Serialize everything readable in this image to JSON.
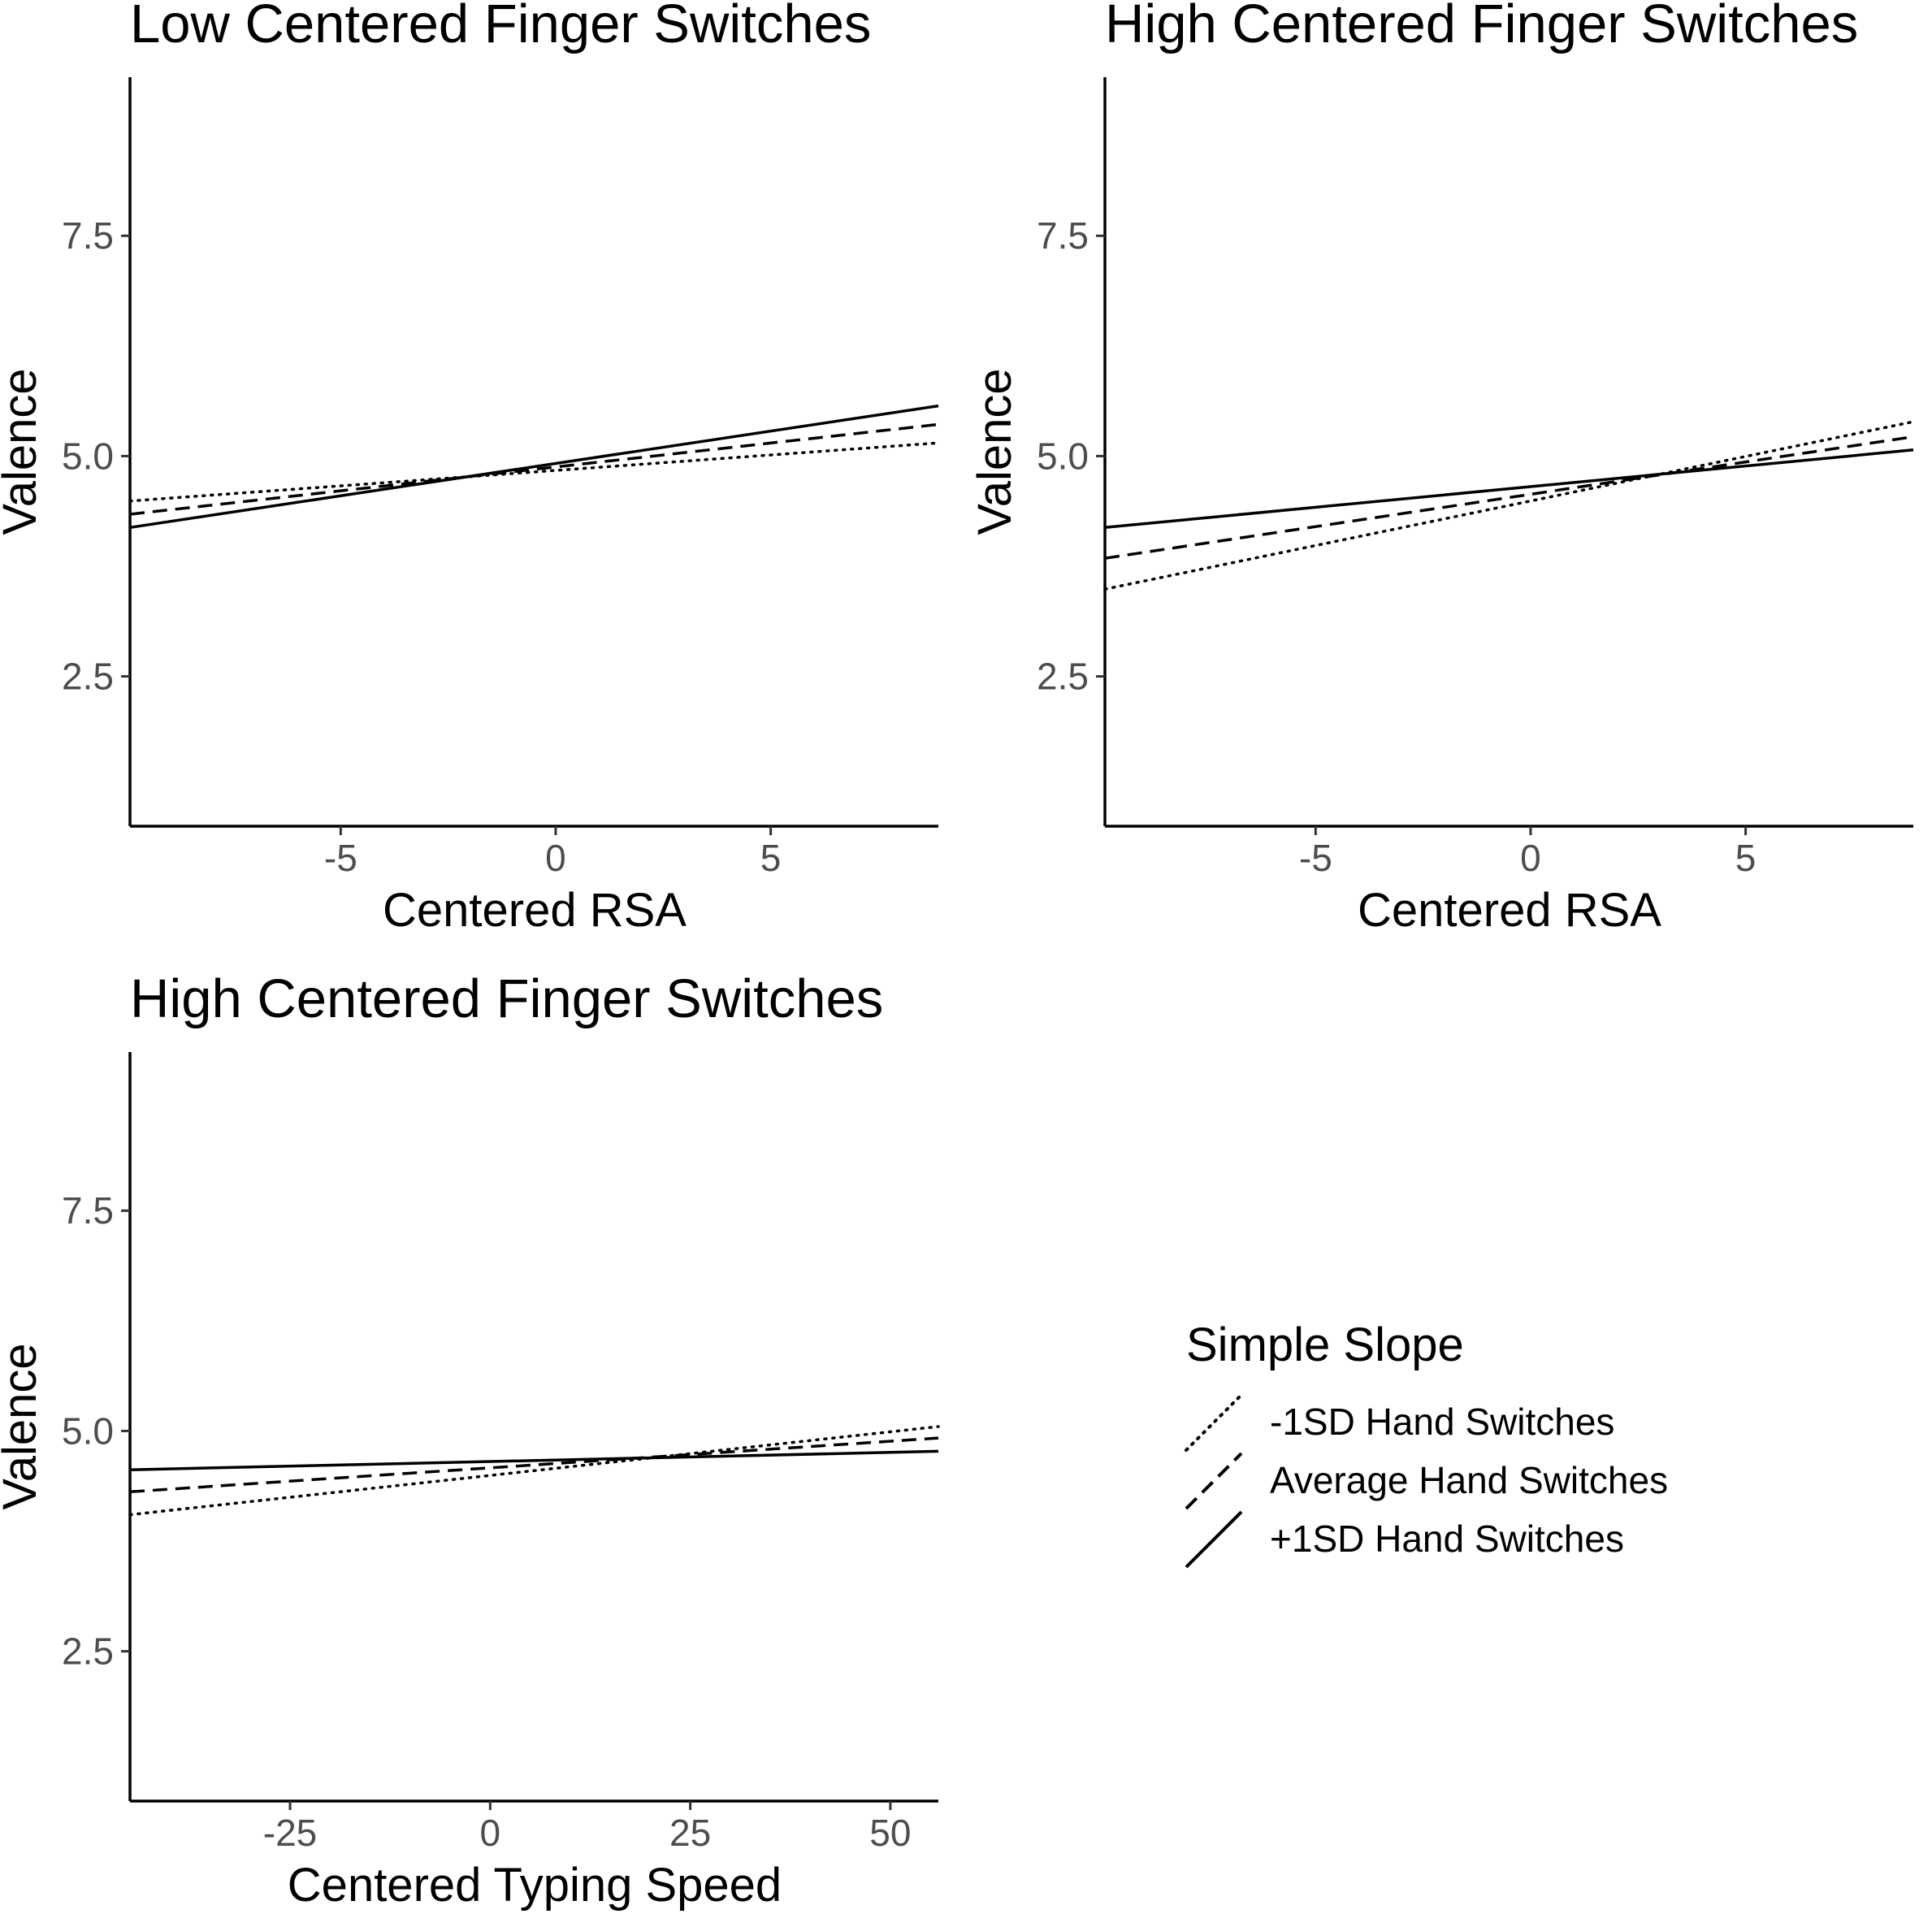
{
  "chart_data": [
    {
      "type": "line",
      "title": "Low Centered Finger Switches",
      "xlabel": "Centered RSA",
      "ylabel": "Valence",
      "xlim": [
        -9.9,
        8.9
      ],
      "ylim": [
        0.8,
        9.3
      ],
      "xticks": [
        -5,
        0,
        5
      ],
      "xtick_labels": [
        "-5",
        "0",
        "5"
      ],
      "yticks": [
        2.5,
        5.0,
        7.5
      ],
      "ytick_labels": [
        "2.5",
        "5.0",
        "7.5"
      ],
      "grid": false,
      "series": [
        {
          "name": "-1SD Hand Switches",
          "style": "dotted",
          "x": [
            -9.9,
            8.9
          ],
          "y": [
            4.49,
            5.15
          ]
        },
        {
          "name": "Average Hand Switches",
          "style": "dashed",
          "x": [
            -9.9,
            8.9
          ],
          "y": [
            4.34,
            5.36
          ]
        },
        {
          "name": "+1SD Hand Switches",
          "style": "solid",
          "x": [
            -9.9,
            8.9
          ],
          "y": [
            4.19,
            5.57
          ]
        }
      ]
    },
    {
      "type": "line",
      "title": "High Centered Finger Switches",
      "xlabel": "Centered RSA",
      "ylabel": "Valence",
      "xlim": [
        -9.9,
        8.9
      ],
      "ylim": [
        0.8,
        9.3
      ],
      "xticks": [
        -5,
        0,
        5
      ],
      "xtick_labels": [
        "-5",
        "0",
        "5"
      ],
      "yticks": [
        2.5,
        5.0,
        7.5
      ],
      "ytick_labels": [
        "2.5",
        "5.0",
        "7.5"
      ],
      "grid": false,
      "series": [
        {
          "name": "-1SD Hand Switches",
          "style": "dotted",
          "x": [
            -9.9,
            8.9
          ],
          "y": [
            3.49,
            5.39
          ]
        },
        {
          "name": "Average Hand Switches",
          "style": "dashed",
          "x": [
            -9.9,
            8.9
          ],
          "y": [
            3.84,
            5.22
          ]
        },
        {
          "name": "+1SD Hand Switches",
          "style": "solid",
          "x": [
            -9.9,
            8.9
          ],
          "y": [
            4.19,
            5.07
          ]
        }
      ]
    },
    {
      "type": "line",
      "title": "High Centered Finger Switches",
      "xlabel": "Centered Typing Speed",
      "ylabel": "Valence",
      "xlim": [
        -45,
        56
      ],
      "ylim": [
        0.8,
        9.3
      ],
      "xticks": [
        -25,
        0,
        25,
        50
      ],
      "xtick_labels": [
        "-25",
        "0",
        "25",
        "50"
      ],
      "yticks": [
        2.5,
        5.0,
        7.5
      ],
      "ytick_labels": [
        "2.5",
        "5.0",
        "7.5"
      ],
      "grid": false,
      "series": [
        {
          "name": "-1SD Hand Switches",
          "style": "dotted",
          "x": [
            -45,
            56
          ],
          "y": [
            4.05,
            5.05
          ]
        },
        {
          "name": "Average Hand Switches",
          "style": "dashed",
          "x": [
            -45,
            56
          ],
          "y": [
            4.31,
            4.92
          ]
        },
        {
          "name": "+1SD Hand Switches",
          "style": "solid",
          "x": [
            -45,
            56
          ],
          "y": [
            4.56,
            4.77
          ]
        }
      ]
    }
  ],
  "legend": {
    "title": "Simple Slope",
    "placement": "bottom-right",
    "items": [
      {
        "label": "-1SD Hand Switches",
        "style": "dotted"
      },
      {
        "label": "Average Hand Switches",
        "style": "dashed"
      },
      {
        "label": "+1SD Hand Switches",
        "style": "solid"
      }
    ]
  },
  "colors": {
    "line": "#000000",
    "tick_label": "#4d4d4d"
  }
}
